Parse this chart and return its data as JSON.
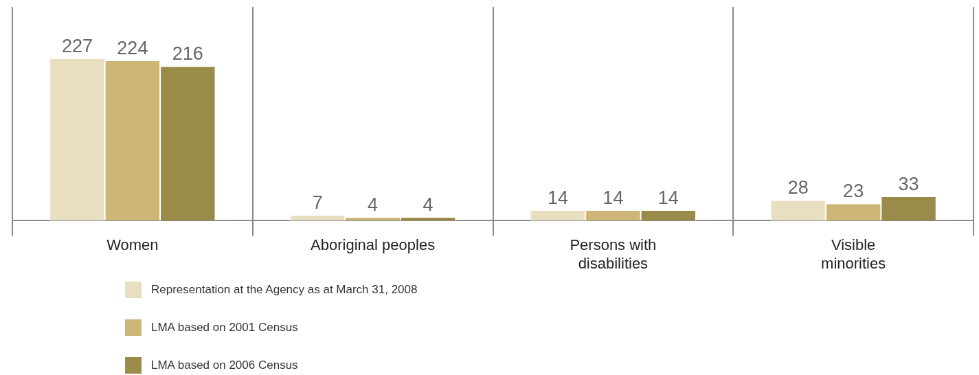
{
  "chart_data": {
    "type": "bar",
    "categories": [
      "Women",
      "Aboriginal peoples",
      "Persons with\ndisabilities",
      "Visible\nminorities"
    ],
    "series": [
      {
        "name": "Representation at the Agency as at March 31, 2008",
        "color": "#e8dfc0",
        "values": [
          227,
          7,
          14,
          28
        ]
      },
      {
        "name": "LMA based on 2001 Census",
        "color": "#ccb577",
        "values": [
          224,
          4,
          14,
          23
        ]
      },
      {
        "name": "LMA based on 2006 Census",
        "color": "#9b8b4a",
        "values": [
          216,
          4,
          14,
          33
        ]
      }
    ],
    "data_labels": true,
    "grid": "x",
    "legend": "bottom"
  }
}
